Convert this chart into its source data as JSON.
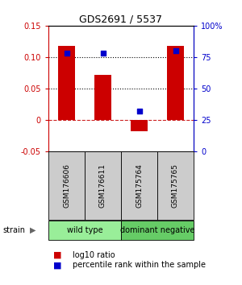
{
  "title": "GDS2691 / 5537",
  "samples": [
    "GSM176606",
    "GSM176611",
    "GSM175764",
    "GSM175765"
  ],
  "log10_ratio": [
    0.118,
    0.072,
    -0.018,
    0.118
  ],
  "percentile_rank": [
    0.78,
    0.78,
    0.32,
    0.8
  ],
  "groups": [
    {
      "label": "wild type",
      "samples": [
        0,
        1
      ],
      "color": "#90EE90"
    },
    {
      "label": "dominant negative",
      "samples": [
        2,
        3
      ],
      "color": "#66CC66"
    }
  ],
  "bar_color": "#CC0000",
  "dot_color": "#0000CC",
  "ylim_left": [
    -0.05,
    0.15
  ],
  "ylim_right": [
    0,
    1.0
  ],
  "yticks_left": [
    -0.05,
    0,
    0.05,
    0.1,
    0.15
  ],
  "ytick_labels_left": [
    "-0.05",
    "0",
    "0.05",
    "0.10",
    "0.15"
  ],
  "yticks_right": [
    0,
    0.25,
    0.5,
    0.75,
    1.0
  ],
  "ytick_labels_right": [
    "0",
    "25",
    "50",
    "75",
    "100%"
  ],
  "hlines": [
    0.0,
    0.05,
    0.1
  ],
  "hline_styles": [
    "--",
    ":",
    ":"
  ],
  "hline_colors": [
    "#CC2222",
    "#000000",
    "#000000"
  ],
  "bg_color": "#ffffff",
  "sample_bg_color": "#CCCCCC",
  "wild_type_color": "#99EE99",
  "dom_neg_color": "#66CC66",
  "strain_label": "strain",
  "legend_ratio_label": "log10 ratio",
  "legend_pct_label": "percentile rank within the sample"
}
